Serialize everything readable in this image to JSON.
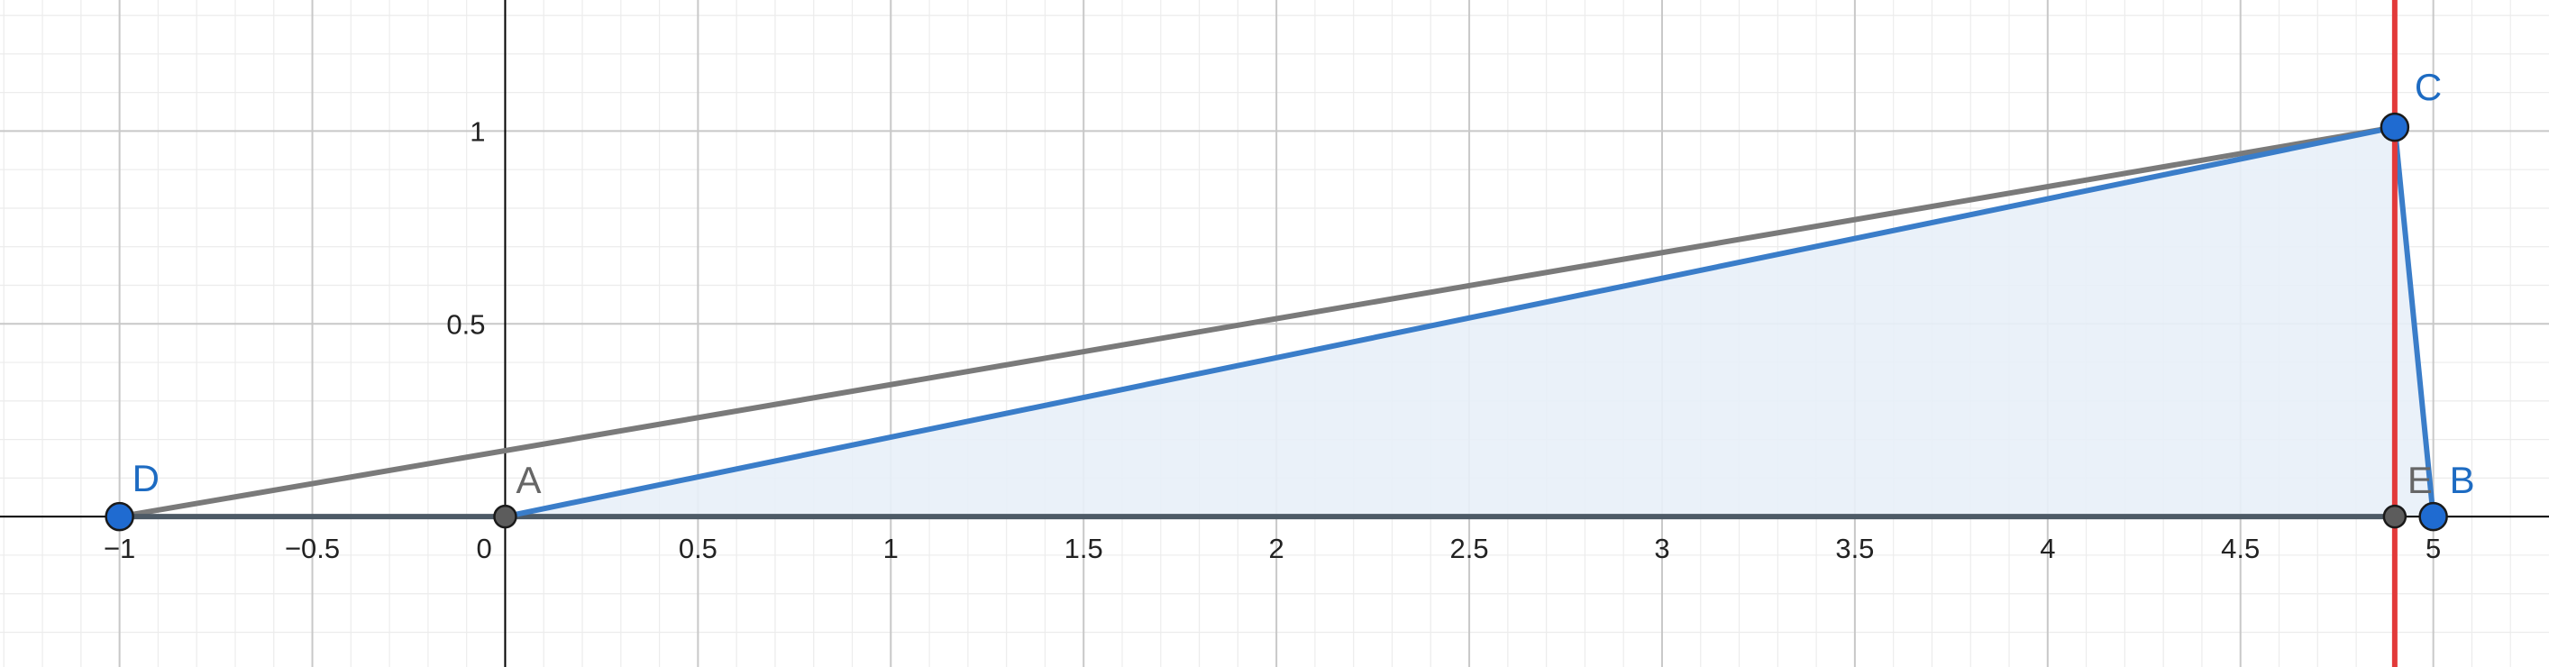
{
  "axes": {
    "x_range": [
      -1.31,
      5.3
    ],
    "y_range": [
      -0.39,
      1.34
    ],
    "major_step": 0.5,
    "minor_step": 0.1,
    "x_tick_labels": [
      {
        "value": -1,
        "text": "−1"
      },
      {
        "value": -0.5,
        "text": "−0.5"
      },
      {
        "value": 0,
        "text": "0"
      },
      {
        "value": 0.5,
        "text": "0.5"
      },
      {
        "value": 1,
        "text": "1"
      },
      {
        "value": 1.5,
        "text": "1.5"
      },
      {
        "value": 2,
        "text": "2"
      },
      {
        "value": 2.5,
        "text": "2.5"
      },
      {
        "value": 3,
        "text": "3"
      },
      {
        "value": 3.5,
        "text": "3.5"
      },
      {
        "value": 4,
        "text": "4"
      },
      {
        "value": 4.5,
        "text": "4.5"
      },
      {
        "value": 5,
        "text": "5"
      }
    ],
    "y_tick_labels": [
      {
        "value": 0.5,
        "text": "0.5"
      },
      {
        "value": 1,
        "text": "1"
      }
    ],
    "grid": true
  },
  "points": [
    {
      "id": "A",
      "label": "A",
      "x": 0,
      "y": 0,
      "style": "gray"
    },
    {
      "id": "B",
      "label": "B",
      "x": 5,
      "y": 0,
      "style": "blue"
    },
    {
      "id": "C",
      "label": "C",
      "x": 4.9,
      "y": 1.01,
      "style": "blue"
    },
    {
      "id": "D",
      "label": "D",
      "x": -1,
      "y": 0,
      "style": "blue"
    },
    {
      "id": "E",
      "label": "E",
      "x": 4.9,
      "y": 0,
      "style": "gray"
    }
  ],
  "polygon_ABC": [
    "A",
    "B",
    "C"
  ],
  "segments": [
    {
      "from": "D",
      "to": "C",
      "style": "gray"
    },
    {
      "from": "D",
      "to": "E",
      "style": "dark"
    },
    {
      "from": "A",
      "to": "C",
      "style": "blue"
    },
    {
      "from": "C",
      "to": "B",
      "style": "blue"
    }
  ],
  "vertical_line_x": 4.9,
  "colors": {
    "blue": "#3a7dc9",
    "blue_point": "#1f6bd1",
    "gray": "#7a7a7a",
    "dark": "#4d5a66",
    "red": "#e23a3a",
    "fill": "#e8eff8",
    "label_blue": "#1d6bc2",
    "label_gray": "#666666",
    "major_grid": "#c8c8c8",
    "minor_grid": "#ececec",
    "axis": "#000000"
  }
}
